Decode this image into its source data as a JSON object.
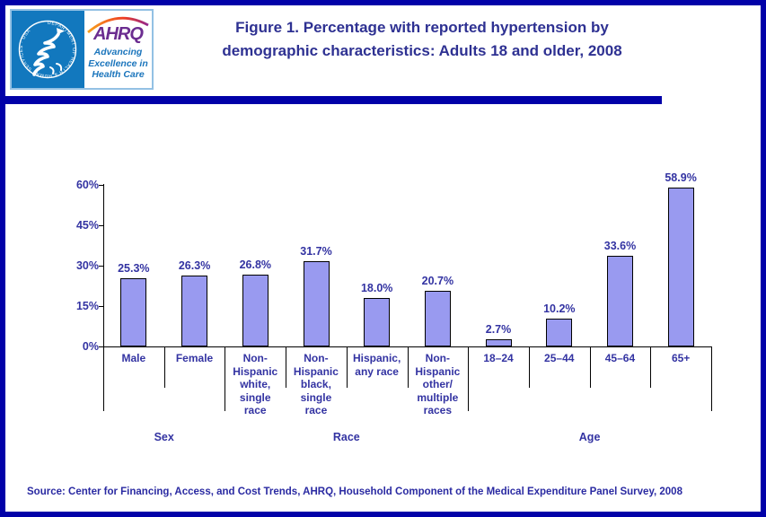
{
  "page": {
    "title": "Figure 1. Percentage with reported hypertension by\ndemographic characteristics: Adults 18 and older, 2008",
    "source": "Source: Center for Financing, Access, and Cost Trends, AHRQ, Household Component of the Medical Expenditure Panel Survey, 2008"
  },
  "logo": {
    "seal_text": "DEPARTMENT OF HEALTH & HUMAN SERVICES · USA",
    "ahrq": "AHRQ",
    "tagline": "Advancing\nExcellence in\nHealth Care"
  },
  "colors": {
    "frame_navy": "#0101A8",
    "separator_band": "#0101A8",
    "title_text": "#2E3192",
    "chart_text": "#3333A2",
    "bar_fill": "#999AF0",
    "bar_border": "#000000",
    "axis": "#000000",
    "logo_blue": "#1278BE",
    "ahrq_purple": "#6B2D90",
    "tagline_blue": "#1B75BC",
    "swoosh_start": "#F9A11B",
    "swoosh_mid": "#EE3D24",
    "swoosh_end": "#92278F",
    "source_text": "#2A2AA2"
  },
  "chart_data": {
    "type": "bar",
    "title": "Figure 1. Percentage with reported hypertension by demographic characteristics: Adults 18 and older, 2008",
    "xlabel": "",
    "ylabel": "",
    "ylim": [
      0,
      60
    ],
    "grid": false,
    "legend": "none",
    "bar_color": "#999AF0",
    "yticks": [
      0,
      15,
      30,
      45,
      60
    ],
    "ytick_labels": [
      "0%",
      "15%",
      "30%",
      "45%",
      "60%"
    ],
    "categories": [
      "Male",
      "Female",
      "Non-Hispanic white, single race",
      "Non-Hispanic black, single race",
      "Hispanic, any race",
      "Non-Hispanic other/ multiple races",
      "18–24",
      "25–44",
      "45–64",
      "65+"
    ],
    "category_label_lines": [
      "Male",
      "Female",
      "Non-\nHispanic\nwhite,\nsingle\nrace",
      "Non-\nHispanic\nblack,\nsingle\nrace",
      "Hispanic,\nany race",
      "Non-\nHispanic\nother/\nmultiple\nraces",
      "18–24",
      "25–44",
      "45–64",
      "65+"
    ],
    "values": [
      25.3,
      26.3,
      26.8,
      31.7,
      18.0,
      20.7,
      2.7,
      10.2,
      33.6,
      58.9
    ],
    "value_labels": [
      "25.3%",
      "26.3%",
      "26.8%",
      "31.7%",
      "18.0%",
      "20.7%",
      "2.7%",
      "10.2%",
      "33.6%",
      "58.9%"
    ],
    "groups": [
      {
        "label": "Sex",
        "start": 0,
        "end": 1
      },
      {
        "label": "Race",
        "start": 2,
        "end": 5
      },
      {
        "label": "Age",
        "start": 6,
        "end": 9
      }
    ]
  }
}
